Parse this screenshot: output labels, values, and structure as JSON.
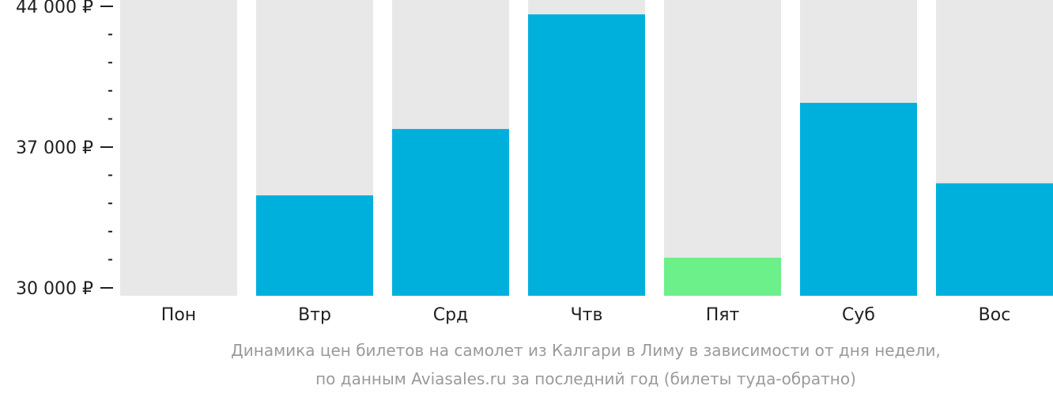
{
  "chart_data": {
    "type": "bar",
    "categories": [
      "Пон",
      "Втр",
      "Срд",
      "Чтв",
      "Пят",
      "Суб",
      "Вос"
    ],
    "values": [
      null,
      34600,
      37900,
      43600,
      31500,
      39200,
      35200
    ],
    "highlight_index": 4,
    "ylim": [
      30000,
      44500
    ],
    "y_major_ticks": [
      {
        "value": 30000,
        "label": "30 000 ₽"
      },
      {
        "value": 37000,
        "label": "37 000 ₽"
      },
      {
        "value": 44000,
        "label": "44 000 ₽"
      }
    ],
    "y_minor_step": 1400,
    "grid": false,
    "legend": "none",
    "colors": {
      "bar": "#00b0dc",
      "highlight": "#6cf08a",
      "background_bar": "#e8e8e8",
      "axis": "#222222"
    }
  },
  "caption": {
    "line1": "Динамика цен билетов на самолет из Калгари в Лиму в зависимости от дня недели,",
    "line2": "по данным Aviasales.ru за последний год (билеты туда-обратно)"
  }
}
